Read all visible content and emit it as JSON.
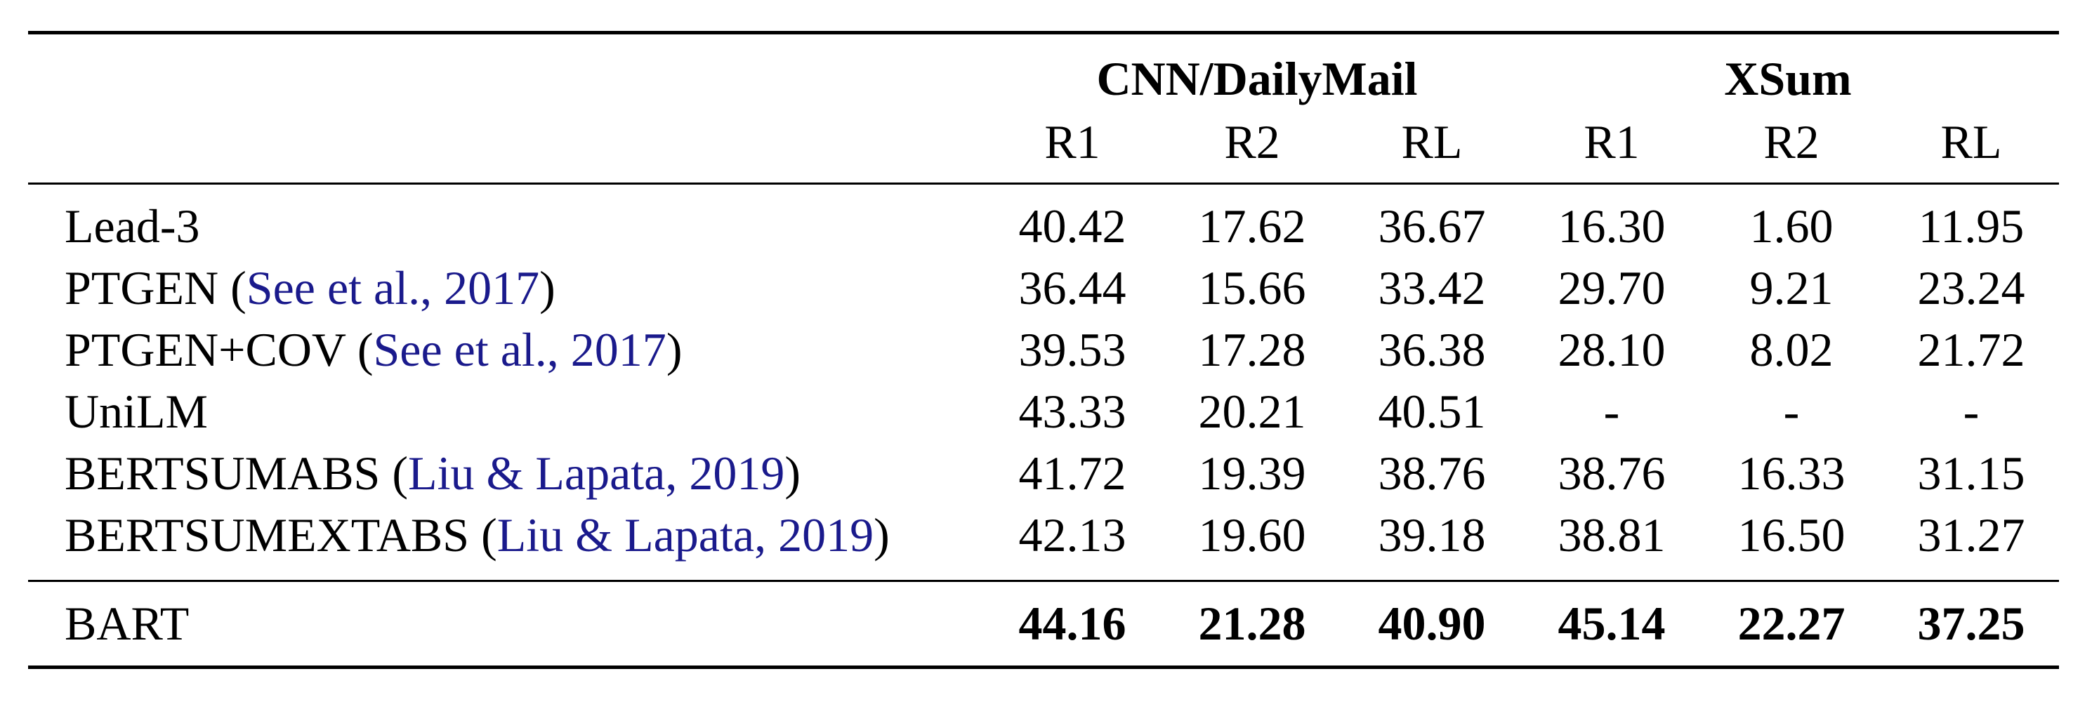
{
  "table": {
    "groups": [
      {
        "label": "CNN/DailyMail"
      },
      {
        "label": "XSum"
      }
    ],
    "columns": [
      "R1",
      "R2",
      "RL",
      "R1",
      "R2",
      "RL"
    ],
    "rows": [
      {
        "model": "Lead-3",
        "cite": "",
        "values": [
          "40.42",
          "17.62",
          "36.67",
          "16.30",
          "1.60",
          "11.95"
        ]
      },
      {
        "model": "PTGEN",
        "cite": "See et al., 2017",
        "values": [
          "36.44",
          "15.66",
          "33.42",
          "29.70",
          "9.21",
          "23.24"
        ]
      },
      {
        "model": "PTGEN+COV",
        "cite": "See et al., 2017",
        "values": [
          "39.53",
          "17.28",
          "36.38",
          "28.10",
          "8.02",
          "21.72"
        ]
      },
      {
        "model": "UniLM",
        "cite": "",
        "values": [
          "43.33",
          "20.21",
          "40.51",
          "-",
          "-",
          "-"
        ]
      },
      {
        "model": "BERTSUMABS",
        "cite": "Liu & Lapata, 2019",
        "values": [
          "41.72",
          "19.39",
          "38.76",
          "38.76",
          "16.33",
          "31.15"
        ]
      },
      {
        "model": "BERTSUMEXTABS",
        "cite": "Liu & Lapata, 2019",
        "values": [
          "42.13",
          "19.60",
          "39.18",
          "38.81",
          "16.50",
          "31.27"
        ]
      }
    ],
    "final_row": {
      "model": "BART",
      "values": [
        "44.16",
        "21.28",
        "40.90",
        "45.14",
        "22.27",
        "37.25"
      ]
    }
  },
  "colors": {
    "citation": "#1a1a8c",
    "text": "#000000"
  }
}
